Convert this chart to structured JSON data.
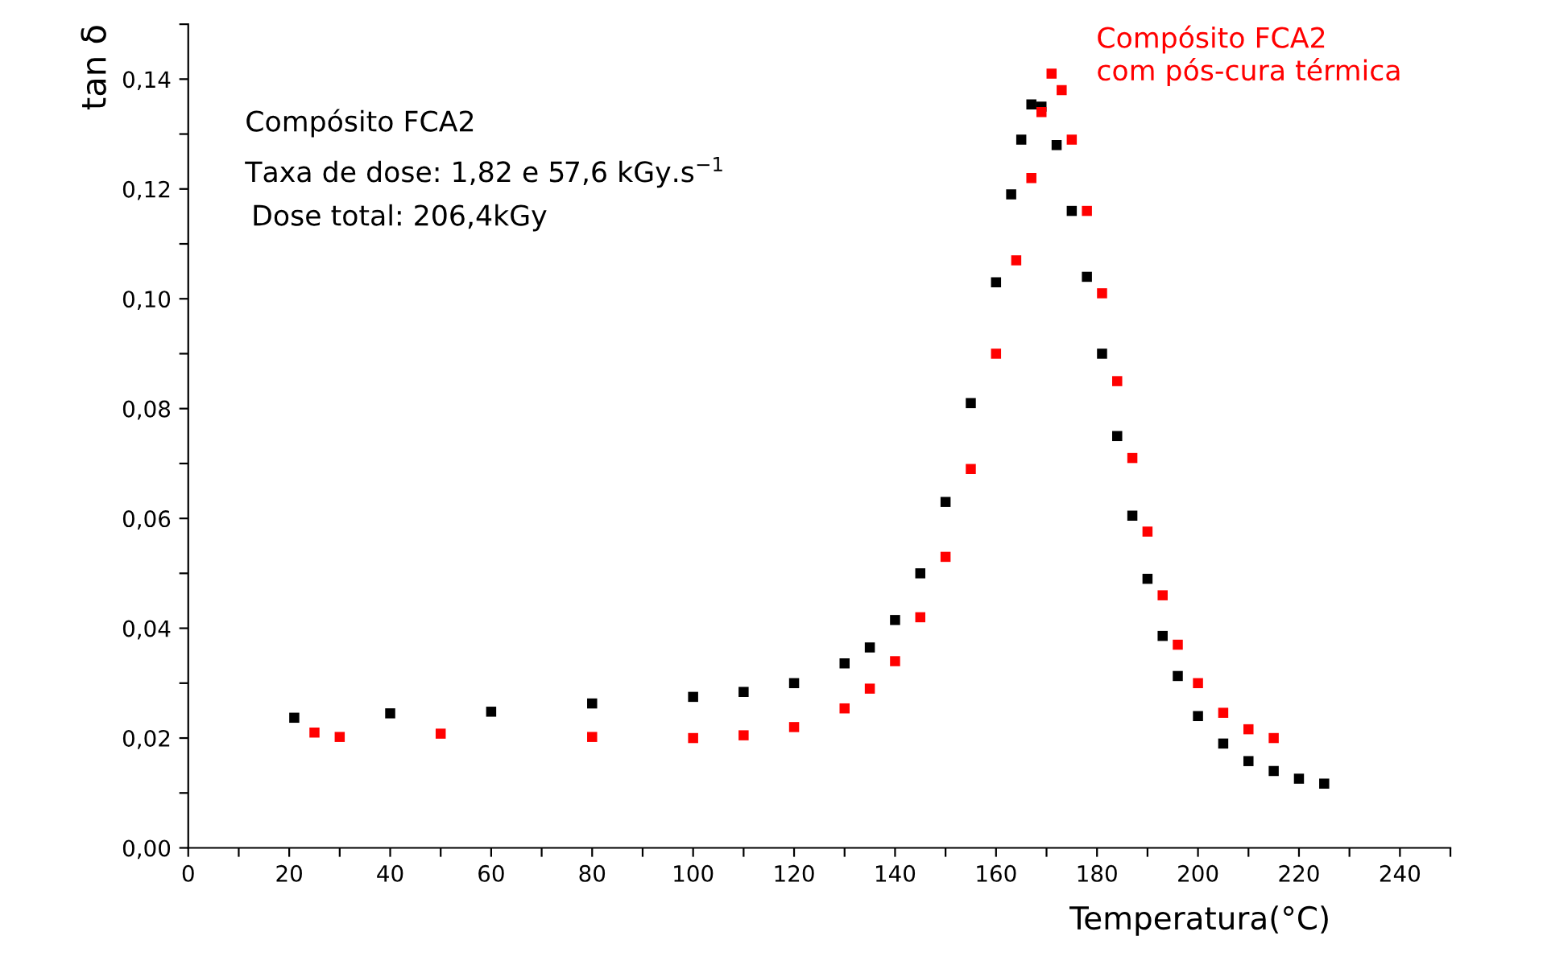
{
  "chart_data": {
    "type": "scatter",
    "xlabel": "Temperatura(°C)",
    "ylabel": "tan δ",
    "marker": "square",
    "grid": false,
    "legend": false,
    "xlim": [
      0,
      250
    ],
    "ylim": [
      0,
      0.15
    ],
    "xticks": [
      0,
      {
        "value": 10,
        "label": null
      },
      20,
      {
        "value": 30,
        "label": null
      },
      40,
      {
        "value": 50,
        "label": null
      },
      60,
      {
        "value": 70,
        "label": null
      },
      80,
      {
        "value": 90,
        "label": null
      },
      100,
      {
        "value": 110,
        "label": null
      },
      120,
      {
        "value": 130,
        "label": null
      },
      140,
      {
        "value": 150,
        "label": null
      },
      160,
      {
        "value": 170,
        "label": null
      },
      180,
      {
        "value": 190,
        "label": null
      },
      200,
      {
        "value": 210,
        "label": null
      },
      220,
      {
        "value": 230,
        "label": null
      },
      240,
      {
        "value": 250,
        "label": null
      }
    ],
    "yticks": [
      {
        "value": 0,
        "label": "0,00"
      },
      {
        "value": 0.01,
        "label": null
      },
      {
        "value": 0.02,
        "label": "0,02"
      },
      {
        "value": 0.03,
        "label": null
      },
      {
        "value": 0.04,
        "label": "0,04"
      },
      {
        "value": 0.05,
        "label": null
      },
      {
        "value": 0.06,
        "label": "0,06"
      },
      {
        "value": 0.07,
        "label": null
      },
      {
        "value": 0.08,
        "label": "0,08"
      },
      {
        "value": 0.09,
        "label": null
      },
      {
        "value": 0.1,
        "label": "0,10"
      },
      {
        "value": 0.11,
        "label": null
      },
      {
        "value": 0.12,
        "label": "0,12"
      },
      {
        "value": 0.13,
        "label": null
      },
      {
        "value": 0.14,
        "label": "0,14"
      },
      {
        "value": 0.15,
        "label": null
      }
    ],
    "annotations": [
      "Compósito FCA2",
      "Taxa de dose: 1,82 e 57,6 kGy.s$^{−1}$",
      "Dose total: 206,4kGy"
    ],
    "series": [
      {
        "color": "#000000",
        "x": [
          21,
          40,
          60,
          80,
          100,
          110,
          120,
          130,
          135,
          140,
          145,
          150,
          155,
          160,
          163,
          165,
          167,
          169,
          172,
          175,
          178,
          181,
          184,
          187,
          190,
          193,
          196,
          200,
          205,
          210,
          215,
          220,
          225
        ],
        "values": [
          0.0237,
          0.0245,
          0.0248,
          0.0263,
          0.0275,
          0.0284,
          0.03,
          0.0336,
          0.0365,
          0.0415,
          0.05,
          0.063,
          0.081,
          0.103,
          0.119,
          0.129,
          0.1354,
          0.135,
          0.128,
          0.116,
          0.104,
          0.09,
          0.075,
          0.0605,
          0.049,
          0.0386,
          0.0313,
          0.024,
          0.019,
          0.0158,
          0.014,
          0.0126,
          0.0117
        ]
      },
      {
        "name": "Compósito FCA2\ncom pós-cura térmica",
        "color": "#ff0000",
        "x": [
          25,
          30,
          50,
          80,
          100,
          110,
          120,
          130,
          135,
          140,
          145,
          150,
          155,
          160,
          164,
          167,
          169,
          171,
          173,
          175,
          178,
          181,
          184,
          187,
          190,
          193,
          196,
          200,
          205,
          210,
          215
        ],
        "values": [
          0.021,
          0.0202,
          0.0208,
          0.0202,
          0.02,
          0.0205,
          0.022,
          0.0254,
          0.029,
          0.034,
          0.042,
          0.053,
          0.069,
          0.09,
          0.107,
          0.122,
          0.134,
          0.141,
          0.138,
          0.129,
          0.116,
          0.101,
          0.085,
          0.071,
          0.0576,
          0.046,
          0.037,
          0.03,
          0.0246,
          0.0216,
          0.02
        ]
      }
    ]
  }
}
